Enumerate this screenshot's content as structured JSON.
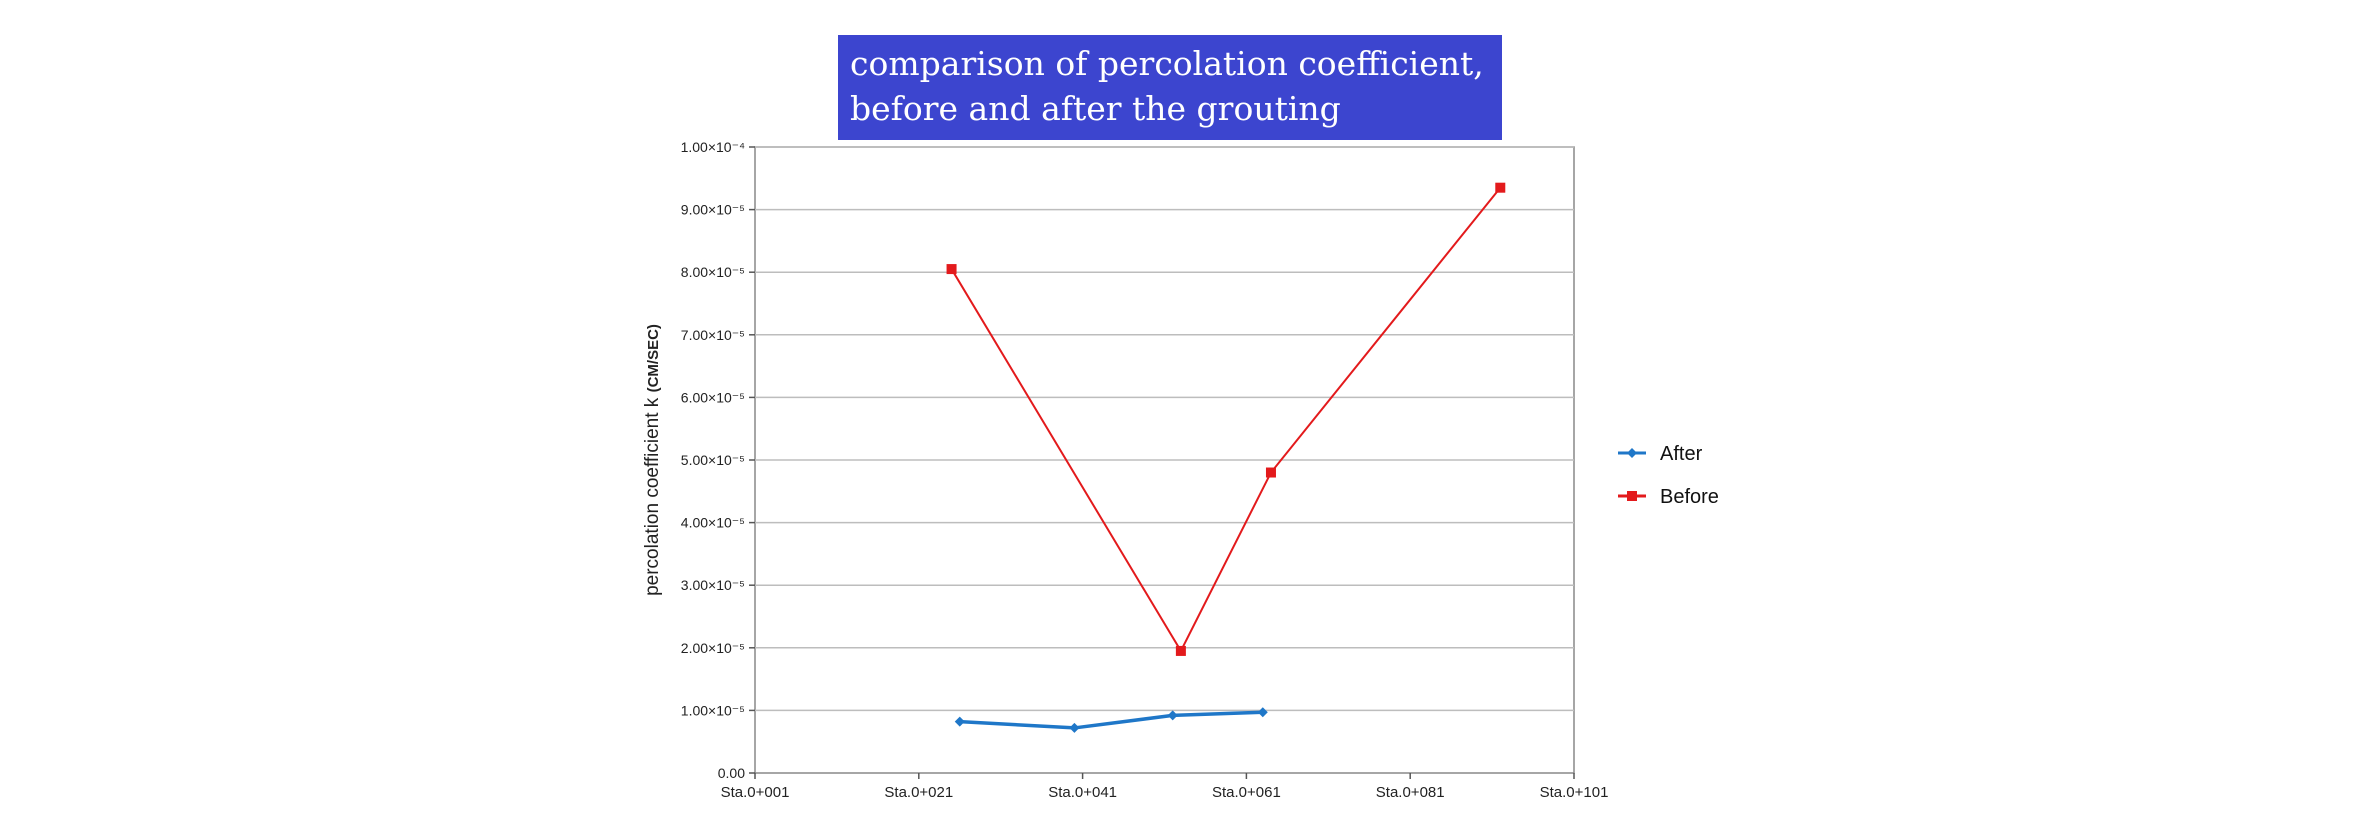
{
  "chart_data": {
    "type": "line",
    "title": [
      "comparison of percolation coefficient,",
      "before and after the grouting"
    ],
    "xlabel": "",
    "ylabel_main": "percolation coefficient k ",
    "ylabel_unit": "(CM/SEC)",
    "categories": [
      "Sta.0+001",
      "Sta.0+021",
      "Sta.0+041",
      "Sta.0+061",
      "Sta.0+081",
      "Sta.0+101"
    ],
    "xlim": [
      1,
      101
    ],
    "ylim": [
      0,
      10
    ],
    "y_unit_multiplier": "×10⁻⁵",
    "yticks": [
      {
        "value": 0,
        "label": "0.00"
      },
      {
        "value": 1,
        "label": "1.00×10⁻⁵"
      },
      {
        "value": 2,
        "label": "2.00×10⁻⁵"
      },
      {
        "value": 3,
        "label": "3.00×10⁻⁵"
      },
      {
        "value": 4,
        "label": "4.00×10⁻⁵"
      },
      {
        "value": 5,
        "label": "5.00×10⁻⁵"
      },
      {
        "value": 6,
        "label": "6.00×10⁻⁵"
      },
      {
        "value": 7,
        "label": "7.00×10⁻⁵"
      },
      {
        "value": 8,
        "label": "8.00×10⁻⁵"
      },
      {
        "value": 9,
        "label": "9.00×10⁻⁵"
      },
      {
        "value": 10,
        "label": "1.00×10⁻⁴"
      }
    ],
    "grid": true,
    "legend_position": "right",
    "series": [
      {
        "name": "After",
        "color": "#1f77c8",
        "marker": "diamond",
        "points": [
          [
            26,
            0.82
          ],
          [
            40,
            0.72
          ],
          [
            52,
            0.92
          ],
          [
            63,
            0.97
          ]
        ]
      },
      {
        "name": "Before",
        "color": "#e31a1c",
        "marker": "square",
        "points": [
          [
            25,
            8.05
          ],
          [
            53,
            1.95
          ],
          [
            64,
            4.8
          ],
          [
            92,
            9.35
          ]
        ]
      }
    ]
  }
}
